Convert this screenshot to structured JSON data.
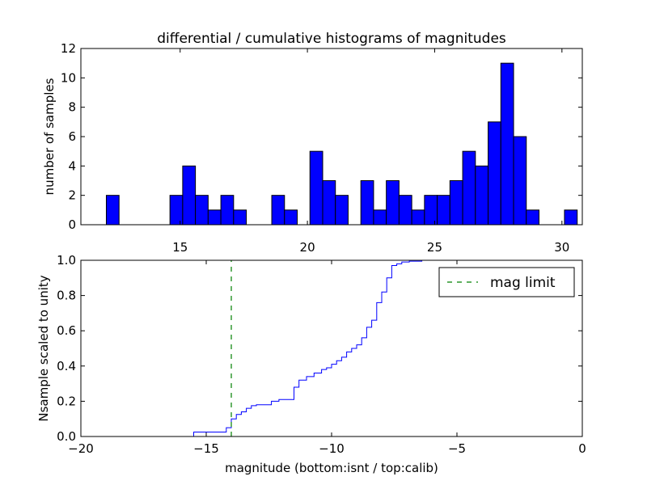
{
  "chart_data": [
    {
      "type": "bar",
      "title": "differential / cumulative histograms of magnitudes",
      "ylabel": "number of samples",
      "xlim": [
        11.1,
        30.8
      ],
      "ylim": [
        0,
        12
      ],
      "xticks": [
        15,
        20,
        25,
        30
      ],
      "yticks": [
        0,
        2,
        4,
        6,
        8,
        10,
        12
      ],
      "xtick_position": "top-of-bottom-axis",
      "bar_color": "#0000ff",
      "bins": [
        {
          "x0": 12.1,
          "x1": 12.6,
          "value": 2
        },
        {
          "x0": 14.6,
          "x1": 15.1,
          "value": 2
        },
        {
          "x0": 15.1,
          "x1": 15.6,
          "value": 4
        },
        {
          "x0": 15.6,
          "x1": 16.1,
          "value": 2
        },
        {
          "x0": 16.1,
          "x1": 16.6,
          "value": 1
        },
        {
          "x0": 16.6,
          "x1": 17.1,
          "value": 2
        },
        {
          "x0": 17.1,
          "x1": 17.6,
          "value": 1
        },
        {
          "x0": 18.6,
          "x1": 19.1,
          "value": 2
        },
        {
          "x0": 19.1,
          "x1": 19.6,
          "value": 1
        },
        {
          "x0": 20.1,
          "x1": 20.6,
          "value": 5
        },
        {
          "x0": 20.6,
          "x1": 21.1,
          "value": 3
        },
        {
          "x0": 21.1,
          "x1": 21.6,
          "value": 2
        },
        {
          "x0": 22.1,
          "x1": 22.6,
          "value": 3
        },
        {
          "x0": 22.6,
          "x1": 23.1,
          "value": 1
        },
        {
          "x0": 23.1,
          "x1": 23.6,
          "value": 3
        },
        {
          "x0": 23.6,
          "x1": 24.1,
          "value": 2
        },
        {
          "x0": 24.1,
          "x1": 24.6,
          "value": 1
        },
        {
          "x0": 24.6,
          "x1": 25.1,
          "value": 2
        },
        {
          "x0": 25.1,
          "x1": 25.6,
          "value": 2
        },
        {
          "x0": 25.6,
          "x1": 26.1,
          "value": 3
        },
        {
          "x0": 26.1,
          "x1": 26.6,
          "value": 5
        },
        {
          "x0": 26.6,
          "x1": 27.1,
          "value": 4
        },
        {
          "x0": 27.1,
          "x1": 27.6,
          "value": 7
        },
        {
          "x0": 27.6,
          "x1": 28.1,
          "value": 11
        },
        {
          "x0": 28.1,
          "x1": 28.6,
          "value": 6
        },
        {
          "x0": 28.6,
          "x1": 29.1,
          "value": 1
        },
        {
          "x0": 30.1,
          "x1": 30.6,
          "value": 1
        }
      ]
    },
    {
      "type": "line",
      "line_style": "step",
      "xlabel": "magnitude (bottom:isnt / top:calib)",
      "ylabel": "Nsample scaled to unity",
      "xlim": [
        -20,
        0
      ],
      "ylim": [
        0,
        1
      ],
      "xticks": [
        -20,
        -15,
        -10,
        -5,
        0
      ],
      "xtick_labels": [
        "−20",
        "−15",
        "−10",
        "−5",
        "0"
      ],
      "yticks": [
        0,
        0.2,
        0.4,
        0.6,
        0.8,
        1.0
      ],
      "ytick_labels": [
        "0.0",
        "0.2",
        "0.4",
        "0.6",
        "0.8",
        "1.0"
      ],
      "legend_position": "top-right",
      "series": [
        {
          "color": "#0000ff",
          "x": [
            -20,
            -15.5,
            -14.2,
            -14,
            -13.8,
            -13.6,
            -13.4,
            -13.2,
            -13.0,
            -12.4,
            -12.1,
            -11.5,
            -11.3,
            -11.0,
            -10.7,
            -10.4,
            -10.2,
            -10.0,
            -9.8,
            -9.6,
            -9.4,
            -9.2,
            -9.0,
            -8.8,
            -8.6,
            -8.4,
            -8.2,
            -8.0,
            -7.8,
            -7.6,
            -7.4,
            -7.2,
            -6.9,
            -6.4,
            0
          ],
          "y": [
            0.0,
            0.025,
            0.05,
            0.1,
            0.125,
            0.14,
            0.16,
            0.175,
            0.18,
            0.2,
            0.21,
            0.28,
            0.32,
            0.34,
            0.36,
            0.38,
            0.39,
            0.41,
            0.43,
            0.45,
            0.48,
            0.5,
            0.52,
            0.56,
            0.62,
            0.66,
            0.76,
            0.82,
            0.9,
            0.97,
            0.98,
            0.99,
            0.995,
            1.0,
            1.0
          ]
        },
        {
          "name": "mag limit",
          "color": "#008000",
          "style": "dashed",
          "x": [
            -14,
            -14
          ],
          "y": [
            0,
            1
          ]
        }
      ]
    }
  ]
}
